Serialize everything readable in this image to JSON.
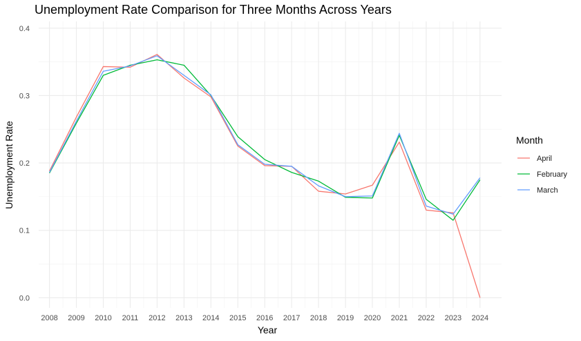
{
  "chart_data": {
    "type": "line",
    "title": "Unemployment Rate Comparison for Three Months Across Years",
    "xlabel": "Year",
    "ylabel": "Unemployment Rate",
    "x": [
      2008,
      2009,
      2010,
      2011,
      2012,
      2013,
      2014,
      2015,
      2016,
      2017,
      2018,
      2019,
      2020,
      2021,
      2022,
      2023,
      2024
    ],
    "xlim": [
      2007.6,
      2024.8
    ],
    "ylim": [
      -0.015,
      0.41
    ],
    "yticks": [
      0.0,
      0.1,
      0.2,
      0.3,
      0.4
    ],
    "ytick_labels": [
      "0.0",
      "0.1",
      "0.2",
      "0.3",
      "0.4"
    ],
    "grid": true,
    "legend": {
      "title": "Month",
      "position": "right"
    },
    "series": [
      {
        "name": "April",
        "color": "#F8766D",
        "values": [
          0.188,
          0.268,
          0.343,
          0.342,
          0.361,
          0.326,
          0.298,
          0.225,
          0.196,
          0.195,
          0.158,
          0.154,
          0.167,
          0.231,
          0.13,
          0.126,
          0.0
        ]
      },
      {
        "name": "February",
        "color": "#00BA38",
        "values": [
          0.185,
          0.259,
          0.33,
          0.345,
          0.353,
          0.345,
          0.3,
          0.239,
          0.205,
          0.186,
          0.173,
          0.149,
          0.148,
          0.241,
          0.146,
          0.115,
          0.175
        ]
      },
      {
        "name": "March",
        "color": "#619CFF",
        "values": [
          0.186,
          0.262,
          0.336,
          0.344,
          0.359,
          0.33,
          0.301,
          0.227,
          0.198,
          0.195,
          0.166,
          0.15,
          0.151,
          0.244,
          0.136,
          0.124,
          0.178
        ]
      }
    ]
  }
}
